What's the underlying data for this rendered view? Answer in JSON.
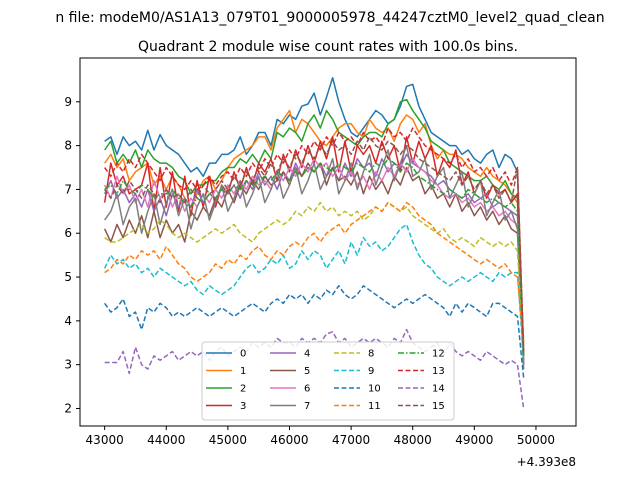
{
  "suptitle": "n file: modeM0/AS1A13_079T01_9000005978_44247cztM0_level2_quad_clean",
  "chart_data": {
    "type": "line",
    "title": "Quadrant 2 module wise count rates with 100.0s bins.",
    "xlabel": "",
    "ylabel": "",
    "x_offset_label": "+4.393e8",
    "xlim": [
      42600,
      50650
    ],
    "ylim": [
      1.6,
      10.0
    ],
    "x_ticks": [
      43000,
      44000,
      45000,
      46000,
      47000,
      48000,
      49000,
      50000
    ],
    "x_tick_labels": [
      "43000",
      "44000",
      "45000",
      "46000",
      "47000",
      "48000",
      "49000",
      "50000"
    ],
    "y_ticks": [
      2,
      3,
      4,
      5,
      6,
      7,
      8,
      9
    ],
    "y_tick_labels": [
      "2",
      "3",
      "4",
      "5",
      "6",
      "7",
      "8",
      "9"
    ],
    "grid": false,
    "legend_placement": "lower-center, 4 columns",
    "x_start": 43000,
    "x_step": 100,
    "series": [
      {
        "name": "0",
        "color": "#1f77b4",
        "dash": "solid",
        "values": [
          8.1,
          8.2,
          7.8,
          8.2,
          8.0,
          8.1,
          7.9,
          8.35,
          7.9,
          8.25,
          8.0,
          7.9,
          7.8,
          7.6,
          7.4,
          7.5,
          7.3,
          7.6,
          7.6,
          7.8,
          7.8,
          7.9,
          8.2,
          7.8,
          8.0,
          8.3,
          8.3,
          8.0,
          8.6,
          8.5,
          8.7,
          8.6,
          8.9,
          8.95,
          9.2,
          8.7,
          9.1,
          9.55,
          9.0,
          8.6,
          8.3,
          8.2,
          8.4,
          8.6,
          8.8,
          8.7,
          8.5,
          8.6,
          8.9,
          9.35,
          9.4,
          8.9,
          8.6,
          8.3,
          8.2,
          8.1,
          8.0,
          8.0,
          7.8,
          7.9,
          7.7,
          7.6,
          7.8,
          7.9,
          7.5,
          7.8,
          7.7,
          7.4,
          3.0
        ]
      },
      {
        "name": "1",
        "color": "#ff7f0e",
        "dash": "solid",
        "values": [
          7.6,
          7.8,
          7.5,
          7.7,
          7.2,
          7.4,
          7.5,
          7.6,
          7.1,
          7.3,
          7.0,
          7.3,
          7.1,
          6.8,
          6.6,
          6.9,
          7.2,
          7.3,
          7.0,
          7.2,
          7.5,
          7.7,
          7.8,
          7.9,
          8.0,
          8.2,
          8.2,
          7.9,
          8.4,
          8.6,
          8.8,
          8.3,
          8.6,
          8.5,
          8.3,
          8.1,
          8.0,
          8.2,
          8.4,
          8.5,
          8.5,
          8.3,
          8.2,
          8.6,
          8.4,
          8.3,
          8.4,
          8.1,
          8.5,
          8.7,
          8.6,
          8.3,
          8.5,
          8.0,
          7.7,
          7.9,
          7.8,
          7.8,
          7.7,
          7.5,
          7.4,
          7.3,
          7.5,
          7.3,
          7.2,
          7.1,
          6.9,
          6.7,
          3.5
        ]
      },
      {
        "name": "2",
        "color": "#2ca02c",
        "dash": "solid",
        "values": [
          7.9,
          8.1,
          7.6,
          7.8,
          7.6,
          7.9,
          7.5,
          7.9,
          7.7,
          7.6,
          7.6,
          7.5,
          7.3,
          7.2,
          6.9,
          7.1,
          7.1,
          7.2,
          7.2,
          7.4,
          7.5,
          7.5,
          7.7,
          7.6,
          7.8,
          7.6,
          7.9,
          7.7,
          8.3,
          8.2,
          8.4,
          8.3,
          8.1,
          8.5,
          8.7,
          8.4,
          8.8,
          8.6,
          8.3,
          8.2,
          8.1,
          8.0,
          8.2,
          8.3,
          8.3,
          8.2,
          8.5,
          8.6,
          9.0,
          9.05,
          8.8,
          8.6,
          8.4,
          8.1,
          8.0,
          7.9,
          7.6,
          7.5,
          7.4,
          7.3,
          7.2,
          7.2,
          7.3,
          7.1,
          7.0,
          7.2,
          6.9,
          6.8,
          3.2
        ]
      },
      {
        "name": "3",
        "color": "#d62728",
        "dash": "solid",
        "values": [
          6.7,
          7.6,
          7.1,
          7.3,
          6.9,
          7.0,
          7.1,
          7.6,
          6.5,
          7.5,
          6.6,
          7.4,
          6.5,
          7.3,
          6.4,
          7.2,
          6.6,
          7.3,
          6.6,
          7.1,
          6.9,
          7.4,
          7.0,
          7.5,
          7.1,
          7.6,
          7.4,
          7.7,
          7.2,
          7.8,
          7.4,
          7.9,
          7.5,
          8.0,
          7.6,
          8.1,
          7.7,
          8.2,
          7.4,
          8.1,
          7.4,
          8.0,
          7.8,
          8.0,
          7.6,
          8.1,
          7.7,
          8.0,
          7.4,
          8.2,
          7.6,
          8.1,
          7.7,
          8.0,
          7.3,
          7.7,
          7.5,
          7.9,
          7.1,
          7.4,
          6.9,
          7.2,
          6.8,
          7.1,
          6.9,
          7.0,
          6.7,
          6.9,
          3.2
        ]
      },
      {
        "name": "4",
        "color": "#9467bd",
        "dash": "solid",
        "values": [
          6.9,
          7.2,
          6.8,
          7.0,
          6.7,
          6.9,
          6.6,
          7.0,
          6.5,
          6.8,
          6.4,
          6.9,
          6.6,
          6.8,
          6.6,
          7.0,
          6.7,
          6.9,
          6.8,
          7.0,
          6.9,
          7.1,
          6.8,
          7.2,
          7.0,
          7.4,
          7.1,
          7.3,
          7.0,
          7.4,
          7.2,
          7.6,
          7.3,
          7.5,
          7.4,
          7.6,
          7.3,
          7.5,
          7.2,
          7.6,
          7.3,
          7.7,
          7.5,
          7.6,
          7.3,
          7.7,
          7.4,
          7.6,
          7.5,
          7.8,
          7.6,
          7.5,
          7.4,
          7.3,
          7.1,
          7.2,
          7.0,
          6.9,
          6.8,
          6.9,
          6.7,
          6.8,
          6.9,
          6.6,
          6.7,
          6.6,
          6.5,
          6.4,
          3.1
        ]
      },
      {
        "name": "5",
        "color": "#8c564b",
        "dash": "solid",
        "values": [
          6.1,
          5.8,
          6.2,
          5.9,
          6.3,
          6.0,
          6.4,
          5.9,
          6.5,
          5.9,
          6.3,
          6.0,
          6.2,
          5.8,
          6.5,
          6.3,
          6.6,
          6.4,
          6.8,
          6.6,
          7.0,
          6.7,
          7.1,
          6.9,
          7.2,
          7.0,
          7.3,
          7.1,
          7.2,
          7.4,
          7.1,
          7.5,
          7.3,
          7.6,
          7.4,
          7.6,
          7.1,
          7.5,
          7.2,
          7.3,
          7.1,
          7.4,
          6.9,
          7.3,
          7.0,
          7.2,
          6.9,
          7.3,
          7.1,
          7.5,
          7.2,
          7.3,
          6.9,
          7.1,
          6.8,
          6.9,
          6.6,
          6.9,
          6.5,
          6.7,
          6.4,
          6.6,
          6.3,
          6.5,
          6.2,
          6.4,
          6.1,
          6.0,
          3.0
        ]
      },
      {
        "name": "6",
        "color": "#e377c2",
        "dash": "solid",
        "values": [
          7.1,
          6.8,
          7.3,
          6.9,
          7.1,
          6.7,
          7.0,
          6.6,
          7.2,
          6.8,
          7.0,
          6.6,
          6.9,
          6.5,
          6.8,
          6.6,
          6.9,
          6.7,
          7.0,
          6.8,
          7.1,
          6.9,
          7.2,
          7.0,
          7.3,
          7.1,
          7.2,
          7.0,
          7.4,
          7.2,
          7.5,
          7.3,
          7.6,
          7.4,
          7.7,
          7.5,
          7.6,
          7.3,
          7.5,
          7.2,
          7.4,
          7.1,
          7.3,
          7.0,
          7.4,
          7.2,
          7.5,
          7.3,
          7.6,
          7.4,
          7.7,
          7.5,
          7.4,
          7.2,
          7.1,
          6.9,
          6.8,
          6.9,
          6.7,
          6.8,
          6.6,
          6.7,
          6.5,
          6.6,
          6.4,
          6.5,
          6.3,
          6.2,
          3.0
        ]
      },
      {
        "name": "7",
        "color": "#7f7f7f",
        "dash": "solid",
        "values": [
          6.3,
          6.5,
          6.9,
          6.2,
          6.6,
          6.8,
          6.0,
          6.5,
          6.9,
          6.2,
          6.7,
          7.0,
          6.4,
          6.8,
          6.1,
          6.6,
          6.9,
          6.3,
          6.7,
          7.1,
          6.5,
          6.8,
          7.2,
          6.6,
          6.9,
          7.3,
          6.7,
          7.0,
          7.4,
          6.8,
          7.1,
          7.5,
          6.9,
          7.2,
          7.6,
          7.0,
          7.3,
          7.7,
          6.9,
          7.2,
          7.6,
          7.0,
          7.4,
          7.8,
          7.1,
          7.5,
          7.9,
          7.2,
          7.6,
          8.0,
          7.3,
          7.4,
          7.7,
          7.0,
          7.3,
          7.5,
          6.8,
          7.1,
          7.4,
          6.6,
          6.9,
          7.2,
          6.4,
          6.7,
          7.0,
          6.3,
          6.5,
          6.1,
          2.9
        ]
      },
      {
        "name": "8",
        "color": "#bcbd22",
        "dash": "dashed",
        "values": [
          5.9,
          5.8,
          5.8,
          5.9,
          6.0,
          6.1,
          6.2,
          6.0,
          6.1,
          6.3,
          6.2,
          6.0,
          5.9,
          6.0,
          5.9,
          5.8,
          5.9,
          6.0,
          6.1,
          6.0,
          6.1,
          6.2,
          6.0,
          5.9,
          5.8,
          6.0,
          6.1,
          6.2,
          6.3,
          6.2,
          6.3,
          6.5,
          6.4,
          6.6,
          6.5,
          6.7,
          6.5,
          6.6,
          6.4,
          6.5,
          6.4,
          6.5,
          6.3,
          6.4,
          6.6,
          6.5,
          6.7,
          6.6,
          6.5,
          6.6,
          6.4,
          6.3,
          6.2,
          6.1,
          6.0,
          6.1,
          5.9,
          5.8,
          5.9,
          5.8,
          5.7,
          5.9,
          5.8,
          5.7,
          5.8,
          5.7,
          5.8,
          5.6,
          3.1
        ]
      },
      {
        "name": "9",
        "color": "#17becf",
        "dash": "dashed",
        "values": [
          5.2,
          5.5,
          5.3,
          5.4,
          5.2,
          5.3,
          5.1,
          5.2,
          5.0,
          5.2,
          5.1,
          5.0,
          4.9,
          4.8,
          4.9,
          4.7,
          4.6,
          4.8,
          4.7,
          4.6,
          4.7,
          4.8,
          5.0,
          5.2,
          5.3,
          5.1,
          5.2,
          5.4,
          5.3,
          5.5,
          5.2,
          5.3,
          5.6,
          5.4,
          5.6,
          5.5,
          5.2,
          5.4,
          5.6,
          5.3,
          5.8,
          5.5,
          5.9,
          5.7,
          5.8,
          5.6,
          5.7,
          5.9,
          6.1,
          6.2,
          5.8,
          5.5,
          5.3,
          5.2,
          5.0,
          4.9,
          4.8,
          4.9,
          5.0,
          4.9,
          5.0,
          5.1,
          5.0,
          4.9,
          5.1,
          5.0,
          5.1,
          5.1,
          3.1
        ]
      },
      {
        "name": "10",
        "color": "#1f77b4",
        "dash": "dashed",
        "values": [
          4.4,
          4.2,
          4.3,
          4.5,
          4.1,
          4.2,
          3.8,
          4.3,
          4.2,
          4.4,
          4.3,
          4.1,
          4.2,
          4.1,
          4.2,
          4.3,
          4.2,
          4.1,
          4.2,
          4.3,
          4.2,
          4.1,
          4.2,
          4.3,
          4.4,
          4.3,
          4.2,
          4.4,
          4.5,
          4.4,
          4.6,
          4.5,
          4.6,
          4.4,
          4.6,
          4.5,
          4.7,
          4.6,
          4.8,
          4.6,
          4.5,
          4.6,
          4.8,
          4.7,
          4.6,
          4.5,
          4.4,
          4.3,
          4.4,
          4.5,
          4.4,
          4.5,
          4.6,
          4.5,
          4.4,
          4.3,
          4.1,
          4.4,
          4.2,
          4.4,
          4.3,
          4.2,
          4.1,
          4.4,
          4.4,
          4.3,
          4.2,
          4.1,
          2.7
        ]
      },
      {
        "name": "11",
        "color": "#ff7f0e",
        "dash": "dashed",
        "values": [
          5.1,
          5.2,
          5.4,
          5.3,
          5.5,
          5.4,
          5.6,
          5.5,
          5.6,
          5.4,
          5.7,
          5.5,
          5.3,
          5.2,
          5.0,
          4.9,
          5.0,
          5.1,
          5.3,
          5.2,
          5.4,
          5.3,
          5.5,
          5.4,
          5.6,
          5.7,
          5.5,
          5.4,
          5.6,
          5.5,
          5.7,
          5.8,
          5.7,
          5.9,
          6.0,
          5.8,
          6.0,
          6.1,
          6.2,
          6.0,
          6.2,
          6.3,
          6.4,
          6.5,
          6.6,
          6.5,
          6.7,
          6.6,
          6.5,
          6.7,
          6.6,
          6.4,
          6.3,
          6.2,
          6.0,
          5.9,
          5.8,
          5.7,
          5.6,
          5.5,
          5.4,
          5.3,
          5.4,
          5.3,
          5.2,
          5.3,
          5.1,
          5.0,
          3.4
        ]
      },
      {
        "name": "12",
        "color": "#2ca02c",
        "dash": "dashdot",
        "values": [
          7.0,
          7.1,
          6.9,
          7.2,
          7.0,
          6.9,
          7.1,
          7.0,
          6.8,
          6.9,
          6.9,
          7.0,
          6.8,
          6.7,
          6.6,
          6.8,
          6.7,
          6.9,
          6.8,
          7.0,
          6.9,
          7.1,
          7.0,
          7.2,
          7.1,
          7.2,
          7.3,
          7.2,
          7.4,
          7.3,
          7.2,
          7.4,
          7.3,
          7.5,
          7.4,
          7.6,
          7.5,
          7.4,
          7.6,
          7.5,
          7.4,
          7.6,
          7.5,
          7.4,
          7.6,
          7.5,
          7.7,
          7.6,
          7.4,
          7.6,
          7.5,
          7.3,
          7.2,
          7.1,
          7.0,
          6.9,
          7.0,
          6.9,
          6.8,
          7.0,
          6.9,
          6.8,
          6.7,
          6.8,
          6.7,
          6.6,
          6.7,
          6.5,
          3.2
        ]
      },
      {
        "name": "13",
        "color": "#d62728",
        "dash": "dashed",
        "values": [
          7.5,
          7.3,
          7.6,
          7.4,
          7.7,
          7.5,
          7.8,
          7.6,
          7.4,
          7.2,
          7.5,
          7.3,
          7.1,
          7.0,
          7.2,
          7.0,
          7.1,
          7.3,
          7.1,
          7.3,
          7.4,
          7.2,
          7.5,
          7.3,
          7.6,
          7.4,
          7.7,
          7.5,
          7.8,
          7.6,
          7.9,
          7.7,
          8.0,
          7.8,
          8.1,
          7.9,
          8.2,
          8.0,
          8.3,
          8.1,
          8.2,
          8.0,
          8.3,
          8.1,
          8.2,
          8.0,
          8.4,
          8.2,
          8.3,
          8.1,
          8.4,
          8.2,
          8.0,
          7.9,
          7.8,
          7.7,
          7.6,
          7.8,
          7.5,
          7.7,
          7.4,
          7.5,
          7.3,
          7.5,
          7.2,
          7.4,
          7.1,
          7.5,
          3.3
        ]
      },
      {
        "name": "14",
        "color": "#9467bd",
        "dash": "dashed",
        "values": [
          3.05,
          3.05,
          3.05,
          3.3,
          2.8,
          3.4,
          3.0,
          2.9,
          3.2,
          3.1,
          3.2,
          3.3,
          3.1,
          3.2,
          3.3,
          3.2,
          3.3,
          3.1,
          3.3,
          3.4,
          3.2,
          3.3,
          3.4,
          3.3,
          3.5,
          3.4,
          3.5,
          3.4,
          3.6,
          3.5,
          3.5,
          3.4,
          3.6,
          3.5,
          3.6,
          3.5,
          3.7,
          3.75,
          3.5,
          3.6,
          3.4,
          3.5,
          3.6,
          3.5,
          3.6,
          3.5,
          3.4,
          3.6,
          3.5,
          3.8,
          3.5,
          3.4,
          3.3,
          3.4,
          3.5,
          3.2,
          3.5,
          3.3,
          3.2,
          3.3,
          3.2,
          3.1,
          3.3,
          3.2,
          3.1,
          3.0,
          3.1,
          3.0,
          2.0
        ]
      },
      {
        "name": "15",
        "color": "#8c564b",
        "dash": "dashed",
        "values": [
          7.0,
          6.8,
          7.1,
          6.9,
          7.2,
          7.0,
          6.8,
          7.1,
          6.9,
          6.7,
          7.0,
          6.8,
          6.9,
          6.7,
          7.0,
          6.8,
          7.1,
          6.9,
          7.0,
          7.2,
          7.0,
          7.3,
          7.1,
          7.4,
          7.2,
          7.5,
          7.3,
          7.6,
          7.4,
          7.7,
          7.5,
          7.8,
          7.6,
          7.9,
          7.7,
          8.0,
          7.8,
          8.1,
          7.9,
          8.0,
          7.8,
          8.1,
          7.9,
          8.2,
          8.0,
          7.9,
          8.1,
          8.0,
          7.8,
          8.0,
          7.9,
          7.7,
          7.6,
          7.5,
          7.4,
          7.3,
          7.2,
          7.4,
          7.1,
          7.3,
          7.0,
          7.2,
          6.9,
          7.1,
          6.8,
          7.0,
          6.7,
          7.5,
          3.3
        ]
      }
    ]
  }
}
